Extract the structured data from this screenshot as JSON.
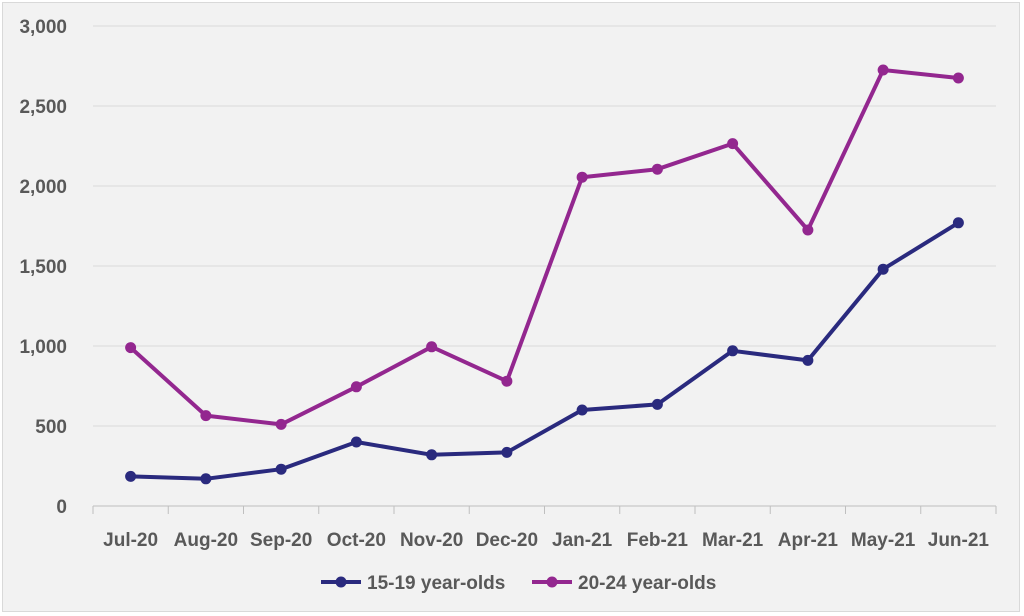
{
  "chart_data": {
    "type": "line",
    "categories": [
      "Jul-20",
      "Aug-20",
      "Sep-20",
      "Oct-20",
      "Nov-20",
      "Dec-20",
      "Jan-21",
      "Feb-21",
      "Mar-21",
      "Apr-21",
      "May-21",
      "Jun-21"
    ],
    "series": [
      {
        "name": "15-19 year-olds",
        "color": "#2a2a7e",
        "values": [
          185,
          170,
          230,
          400,
          320,
          335,
          600,
          635,
          970,
          910,
          1480,
          1770
        ]
      },
      {
        "name": "20-24 year-olds",
        "color": "#93278f",
        "values": [
          990,
          565,
          510,
          745,
          995,
          780,
          2055,
          2105,
          2265,
          1725,
          2725,
          2675
        ]
      }
    ],
    "ylim": [
      0,
      3000
    ],
    "yticks": [
      0,
      500,
      1000,
      1500,
      2000,
      2500,
      3000
    ],
    "ytick_labels": [
      "0",
      "500",
      "1,000",
      "1,500",
      "2,000",
      "2,500",
      "3,000"
    ],
    "grid": true,
    "legend_position": "bottom",
    "title": "",
    "xlabel": "",
    "ylabel": ""
  }
}
